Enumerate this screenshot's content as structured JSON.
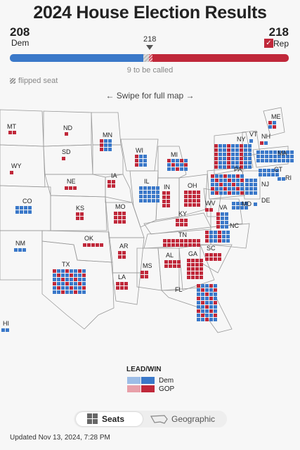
{
  "title": "2024 House Election Results",
  "dem": {
    "count": "208",
    "label": "Dem",
    "color": "#3a78c9"
  },
  "rep": {
    "count": "218",
    "label": "Rep",
    "color": "#c0283a",
    "check": "✓"
  },
  "threshold": "218",
  "to_be_called": "9 to be called",
  "flipped_label": "flipped seat",
  "swipe_hint": "← Swipe for full map →",
  "states": [
    {
      "abbr": "MT"
    },
    {
      "abbr": "ND"
    },
    {
      "abbr": "MN"
    },
    {
      "abbr": "WY"
    },
    {
      "abbr": "SD"
    },
    {
      "abbr": "WI"
    },
    {
      "abbr": "MI"
    },
    {
      "abbr": "IA"
    },
    {
      "abbr": "NE"
    },
    {
      "abbr": "IL"
    },
    {
      "abbr": "IN"
    },
    {
      "abbr": "OH"
    },
    {
      "abbr": "CO"
    },
    {
      "abbr": "KS"
    },
    {
      "abbr": "MO"
    },
    {
      "abbr": "KY"
    },
    {
      "abbr": "WV"
    },
    {
      "abbr": "VA"
    },
    {
      "abbr": "OK"
    },
    {
      "abbr": "TN"
    },
    {
      "abbr": "NC"
    },
    {
      "abbr": "NM"
    },
    {
      "abbr": "AR"
    },
    {
      "abbr": "SC"
    },
    {
      "abbr": "AL"
    },
    {
      "abbr": "GA"
    },
    {
      "abbr": "MS"
    },
    {
      "abbr": "TX"
    },
    {
      "abbr": "LA"
    },
    {
      "abbr": "FL"
    },
    {
      "abbr": "HI"
    },
    {
      "abbr": "ME"
    },
    {
      "abbr": "VT"
    },
    {
      "abbr": "NH"
    },
    {
      "abbr": "NY"
    },
    {
      "abbr": "MA"
    },
    {
      "abbr": "CT"
    },
    {
      "abbr": "RI"
    },
    {
      "abbr": "PA"
    },
    {
      "abbr": "NJ"
    },
    {
      "abbr": "MD"
    },
    {
      "abbr": "DE"
    }
  ],
  "legend": {
    "title": "LEAD/WIN",
    "dem": "Dem",
    "gop": "GOP",
    "colors": {
      "dem_lead": "#9dbde6",
      "dem_win": "#3a78c9",
      "gop_lead": "#e8a0a9",
      "gop_win": "#c0283a"
    }
  },
  "view_toggle": {
    "seats": "Seats",
    "geographic": "Geographic"
  },
  "updated": "Updated Nov 13, 2024, 7:28 PM"
}
